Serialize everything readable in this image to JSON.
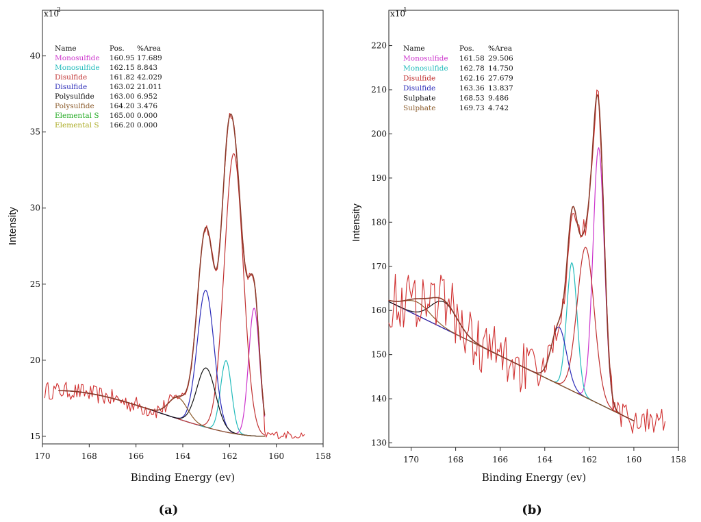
{
  "chart_data": [
    {
      "type": "line",
      "panel_label": "(a)",
      "xlabel": "Binding Energy (ev)",
      "ylabel": "Intensity",
      "y_multiplier": "x10",
      "y_multiplier_exp": "2",
      "xlim": [
        170,
        158
      ],
      "ylim": [
        14.5,
        43
      ],
      "x_ticks": [
        "170",
        "168",
        "166",
        "164",
        "162",
        "160",
        "158"
      ],
      "y_ticks": [
        "15",
        "20",
        "25",
        "30",
        "35",
        "40"
      ],
      "legend_headers": {
        "name": "Name",
        "pos": "Pos.",
        "area": "%Area"
      },
      "legend": [
        {
          "name": "Monosulfide",
          "pos": "160.95",
          "area": "17.689",
          "color": "#cc33cc"
        },
        {
          "name": "Monosulfide",
          "pos": "162.15",
          "area": "8.843",
          "color": "#22bbbb"
        },
        {
          "name": "Disulfide",
          "pos": "161.82",
          "area": "42.029",
          "color": "#c03030"
        },
        {
          "name": "Disulfide",
          "pos": "163.02",
          "area": "21.011",
          "color": "#2a2ab8"
        },
        {
          "name": "Polysulfide",
          "pos": "163.00",
          "area": "6.952",
          "color": "#111111"
        },
        {
          "name": "Polysulfide",
          "pos": "164.20",
          "area": "3.476",
          "color": "#8a5a2a"
        },
        {
          "name": "Elemental S",
          "pos": "165.00",
          "area": "0.000",
          "color": "#22aa22"
        },
        {
          "name": "Elemental S",
          "pos": "166.20",
          "area": "0.000",
          "color": "#aaaa22"
        }
      ],
      "background": {
        "start": [
          169.3,
          18.0
        ],
        "end": [
          160.5,
          15.0
        ],
        "color": "#333333"
      },
      "peaks": [
        {
          "center": 160.95,
          "height": 8.4,
          "fwhm": 0.55,
          "color": "#cc33cc"
        },
        {
          "center": 162.15,
          "height": 4.7,
          "fwhm": 0.55,
          "color": "#22bbbb"
        },
        {
          "center": 161.82,
          "height": 18.4,
          "fwhm": 0.95,
          "color": "#c03030"
        },
        {
          "center": 163.02,
          "height": 9.0,
          "fwhm": 0.85,
          "color": "#2a2ab8"
        },
        {
          "center": 163.0,
          "height": 3.9,
          "fwhm": 0.95,
          "color": "#111111"
        },
        {
          "center": 164.2,
          "height": 1.4,
          "fwhm": 0.95,
          "color": "#8a5a2a"
        }
      ],
      "envelope_color": "#8b3a2a",
      "raw_color": "#d03030",
      "raw_noise": 0.45
    },
    {
      "type": "line",
      "panel_label": "(b)",
      "xlabel": "Binding Energy (ev)",
      "ylabel": "Intensity",
      "y_multiplier": "x10",
      "y_multiplier_exp": "1",
      "xlim": [
        171,
        158
      ],
      "ylim": [
        129,
        228
      ],
      "x_ticks": [
        "170",
        "168",
        "166",
        "164",
        "162",
        "160",
        "158"
      ],
      "y_ticks": [
        "130",
        "140",
        "150",
        "160",
        "170",
        "180",
        "190",
        "200",
        "210",
        "220"
      ],
      "legend_headers": {
        "name": "Name",
        "pos": "Pos.",
        "area": "%Area"
      },
      "legend": [
        {
          "name": "Monosulfide",
          "pos": "161.58",
          "area": "29.506",
          "color": "#cc33cc"
        },
        {
          "name": "Monosulfide",
          "pos": "162.78",
          "area": "14.750",
          "color": "#22bbbb"
        },
        {
          "name": "Disulfide",
          "pos": "162.16",
          "area": "27.679",
          "color": "#c03030"
        },
        {
          "name": "Disulfide",
          "pos": "163.36",
          "area": "13.837",
          "color": "#2a2ab8"
        },
        {
          "name": "Sulphate",
          "pos": "168.53",
          "area": "9.486",
          "color": "#111111"
        },
        {
          "name": "Sulphate",
          "pos": "169.73",
          "area": "4.742",
          "color": "#8a5a2a"
        }
      ],
      "background": {
        "start": [
          171,
          162
        ],
        "end": [
          160,
          135
        ],
        "color": "#8a5a2a"
      },
      "peaks": [
        {
          "center": 161.58,
          "height": 58,
          "fwhm": 0.6,
          "color": "#cc33cc"
        },
        {
          "center": 162.78,
          "height": 29,
          "fwhm": 0.55,
          "color": "#22bbbb"
        },
        {
          "center": 162.16,
          "height": 34,
          "fwhm": 0.9,
          "color": "#c03030"
        },
        {
          "center": 163.36,
          "height": 13,
          "fwhm": 0.8,
          "color": "#2a2ab8"
        },
        {
          "center": 168.53,
          "height": 6,
          "fwhm": 1.4,
          "color": "#111111"
        },
        {
          "center": 169.73,
          "height": 3,
          "fwhm": 1.4,
          "color": "#8a5a2a"
        }
      ],
      "envelope_color": "#8b3a2a",
      "raw_color": "#d03030",
      "raw_noise": 5
    }
  ]
}
